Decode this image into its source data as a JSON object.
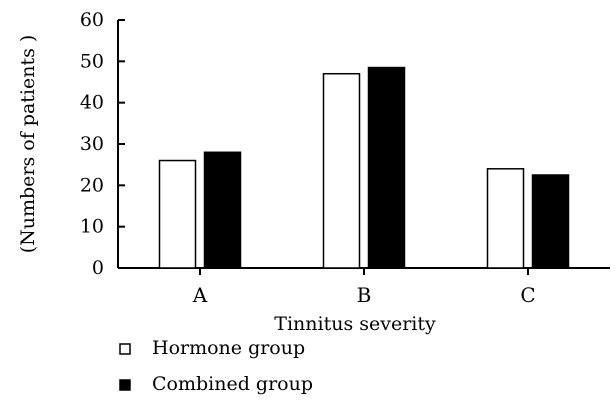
{
  "chart_data": {
    "type": "bar",
    "categories": [
      "A",
      "B",
      "C"
    ],
    "series": [
      {
        "name": "Hormone group",
        "values": [
          26,
          47,
          24
        ],
        "fill": "#ffffff",
        "stroke": "#000000"
      },
      {
        "name": "Combined group",
        "values": [
          28,
          48.5,
          22.5
        ],
        "fill": "#000000",
        "stroke": "#000000"
      }
    ],
    "title": "",
    "xlabel": "Tinnitus severity",
    "ylabel": "(Numbers of patients )",
    "ylim": [
      0,
      60
    ],
    "yticks": [
      0,
      10,
      20,
      30,
      40,
      50,
      60
    ],
    "grid": false,
    "legend_position": "bottom-left"
  }
}
